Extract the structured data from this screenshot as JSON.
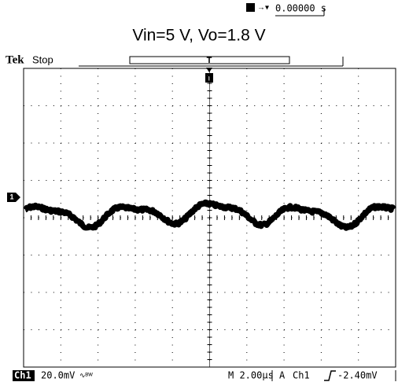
{
  "trigger_position": "0.00000 s",
  "title": "Vin=5 V, Vo=1.8 V",
  "status": {
    "brand": "Tek",
    "state": "Stop"
  },
  "readout": {
    "channel": "Ch1",
    "scale": "20.0mV",
    "timebase": "M 2.00µs",
    "trigger_mode": "A",
    "trigger_source": "Ch1",
    "trigger_level": "-2.40mV"
  }
}
